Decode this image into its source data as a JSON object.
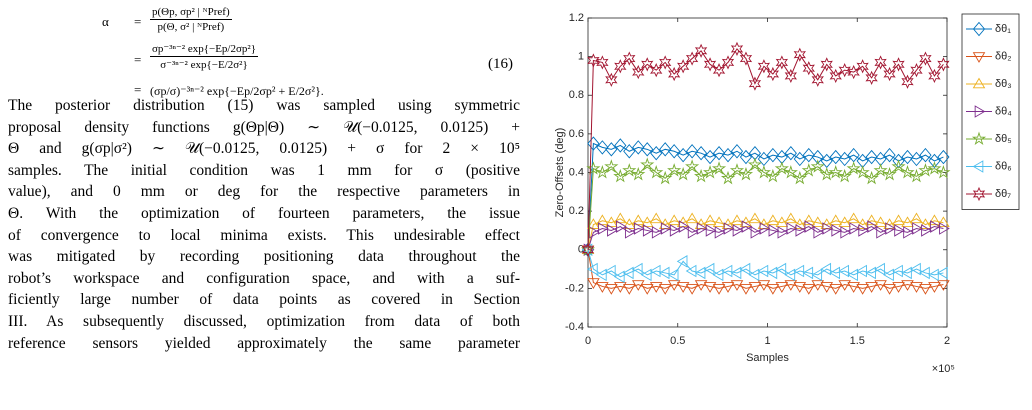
{
  "document": {
    "equation": {
      "lhs": "α",
      "eq_sign": "=",
      "number": "(16)",
      "rows": [
        {
          "num": "p(Θp, σp² | ᴺPref)",
          "den": "p(Θ, σ² | ᴺPref)"
        },
        {
          "num": "σp⁻³ⁿ⁻² exp{−Ep/2σp²}",
          "den": "σ⁻³ⁿ⁻² exp{−E/2σ²}"
        },
        {
          "text": "(σp/σ)⁻³ⁿ⁻² exp{−Ep/2σp² + E/2σ²}."
        }
      ]
    },
    "paragraph_lines": [
      "The posterior distribution (15) was sampled using symmetric",
      "proposal density functions g(Θp|Θ) ∼ 𝒰(−0.0125, 0.0125) +",
      "Θ and g(σp|σ²) ∼ 𝒰(−0.0125, 0.0125) + σ for 2 × 10⁵",
      "samples. The initial condition was 1 mm for σ (positive",
      "value), and 0 mm or deg for the respective parameters in",
      "Θ. With the optimization of fourteen parameters, the issue",
      "of convergence to local minima exists. This undesirable effect",
      "was mitigated by recording positioning data throughout the",
      "robot’s workspace and configuration space, and with a suf-",
      "ficiently large number of data points as covered in Section",
      "III. As subsequently discussed, optimization from data of both",
      "reference sensors yielded approximately the same parameter"
    ]
  },
  "chart_data": {
    "type": "line",
    "x_label": "Samples",
    "y_label": "Zero-Offsets (deg)",
    "x_multiplier": "×10⁵",
    "xlim": [
      0,
      2
    ],
    "xticks": [
      0,
      0.5,
      1,
      1.5,
      2
    ],
    "ylim": [
      -0.4,
      1.2
    ],
    "yticks": [
      -0.4,
      -0.2,
      0,
      0.2,
      0.4,
      0.6,
      0.8,
      1,
      1.2
    ],
    "grid": false,
    "legend": "outside-top-right",
    "x": [
      0,
      0.03,
      0.08,
      0.13,
      0.18,
      0.23,
      0.28,
      0.33,
      0.38,
      0.43,
      0.48,
      0.53,
      0.58,
      0.63,
      0.68,
      0.73,
      0.78,
      0.83,
      0.88,
      0.93,
      0.98,
      1.03,
      1.08,
      1.13,
      1.18,
      1.23,
      1.28,
      1.33,
      1.38,
      1.43,
      1.48,
      1.53,
      1.58,
      1.63,
      1.68,
      1.73,
      1.78,
      1.83,
      1.88,
      1.93,
      1.98
    ],
    "series": [
      {
        "name": "δθ₁",
        "color": "#0072bd",
        "marker": "diamond",
        "values": [
          0,
          0.55,
          0.53,
          0.52,
          0.54,
          0.51,
          0.53,
          0.52,
          0.5,
          0.52,
          0.51,
          0.49,
          0.51,
          0.5,
          0.48,
          0.5,
          0.49,
          0.51,
          0.48,
          0.5,
          0.47,
          0.49,
          0.48,
          0.5,
          0.47,
          0.49,
          0.48,
          0.46,
          0.48,
          0.47,
          0.49,
          0.46,
          0.48,
          0.47,
          0.49,
          0.46,
          0.48,
          0.47,
          0.49,
          0.46,
          0.48
        ]
      },
      {
        "name": "δθ₂",
        "color": "#d95319",
        "marker": "triangle-down",
        "values": [
          0,
          -0.17,
          -0.19,
          -0.2,
          -0.19,
          -0.2,
          -0.18,
          -0.2,
          -0.19,
          -0.2,
          -0.18,
          -0.19,
          -0.2,
          -0.18,
          -0.19,
          -0.2,
          -0.19,
          -0.18,
          -0.2,
          -0.19,
          -0.18,
          -0.2,
          -0.19,
          -0.18,
          -0.19,
          -0.2,
          -0.18,
          -0.19,
          -0.2,
          -0.18,
          -0.19,
          -0.2,
          -0.19,
          -0.18,
          -0.2,
          -0.19,
          -0.18,
          -0.19,
          -0.2,
          -0.19,
          -0.18
        ]
      },
      {
        "name": "δθ₃",
        "color": "#edb120",
        "marker": "triangle-up",
        "values": [
          0,
          0.13,
          0.15,
          0.14,
          0.16,
          0.13,
          0.15,
          0.14,
          0.16,
          0.13,
          0.15,
          0.14,
          0.16,
          0.13,
          0.15,
          0.14,
          0.13,
          0.15,
          0.14,
          0.16,
          0.13,
          0.15,
          0.14,
          0.16,
          0.13,
          0.15,
          0.14,
          0.13,
          0.15,
          0.14,
          0.16,
          0.13,
          0.15,
          0.14,
          0.13,
          0.15,
          0.14,
          0.16,
          0.13,
          0.15,
          0.14
        ]
      },
      {
        "name": "δθ₄",
        "color": "#7e2f8e",
        "marker": "triangle-right",
        "values": [
          0,
          0.09,
          0.11,
          0.1,
          0.12,
          0.09,
          0.11,
          0.1,
          0.09,
          0.11,
          0.1,
          0.12,
          0.09,
          0.11,
          0.1,
          0.09,
          0.11,
          0.1,
          0.12,
          0.09,
          0.11,
          0.1,
          0.09,
          0.11,
          0.1,
          0.12,
          0.09,
          0.11,
          0.1,
          0.09,
          0.11,
          0.1,
          0.12,
          0.09,
          0.11,
          0.1,
          0.09,
          0.11,
          0.1,
          0.12,
          0.11
        ]
      },
      {
        "name": "δθ₅",
        "color": "#77ac30",
        "marker": "pentagram",
        "values": [
          0,
          0.42,
          0.4,
          0.43,
          0.38,
          0.41,
          0.39,
          0.44,
          0.4,
          0.37,
          0.41,
          0.39,
          0.43,
          0.38,
          0.4,
          0.42,
          0.37,
          0.41,
          0.39,
          0.44,
          0.4,
          0.38,
          0.42,
          0.4,
          0.37,
          0.41,
          0.43,
          0.39,
          0.4,
          0.38,
          0.42,
          0.4,
          0.37,
          0.41,
          0.39,
          0.43,
          0.4,
          0.38,
          0.41,
          0.42,
          0.4
        ]
      },
      {
        "name": "δθ₆",
        "color": "#4dbeee",
        "marker": "triangle-left",
        "values": [
          0,
          -0.1,
          -0.13,
          -0.11,
          -0.14,
          -0.12,
          -0.1,
          -0.13,
          -0.11,
          -0.12,
          -0.13,
          -0.06,
          -0.11,
          -0.12,
          -0.1,
          -0.13,
          -0.11,
          -0.12,
          -0.1,
          -0.13,
          -0.11,
          -0.12,
          -0.1,
          -0.13,
          -0.11,
          -0.12,
          -0.13,
          -0.1,
          -0.12,
          -0.11,
          -0.13,
          -0.11,
          -0.12,
          -0.1,
          -0.13,
          -0.11,
          -0.12,
          -0.1,
          -0.12,
          -0.13,
          -0.12
        ]
      },
      {
        "name": "δθ₇",
        "color": "#a2142f",
        "marker": "hexagram",
        "values": [
          0,
          0.98,
          0.97,
          0.88,
          0.95,
          0.99,
          0.92,
          0.96,
          0.93,
          0.97,
          0.91,
          0.95,
          0.99,
          1.03,
          0.96,
          0.93,
          0.97,
          1.04,
          0.99,
          0.86,
          0.95,
          0.91,
          0.97,
          0.9,
          1.01,
          0.94,
          0.88,
          0.96,
          0.9,
          0.93,
          0.92,
          0.95,
          0.89,
          0.97,
          0.91,
          0.96,
          0.87,
          0.93,
          0.99,
          0.9,
          0.96
        ]
      }
    ]
  }
}
